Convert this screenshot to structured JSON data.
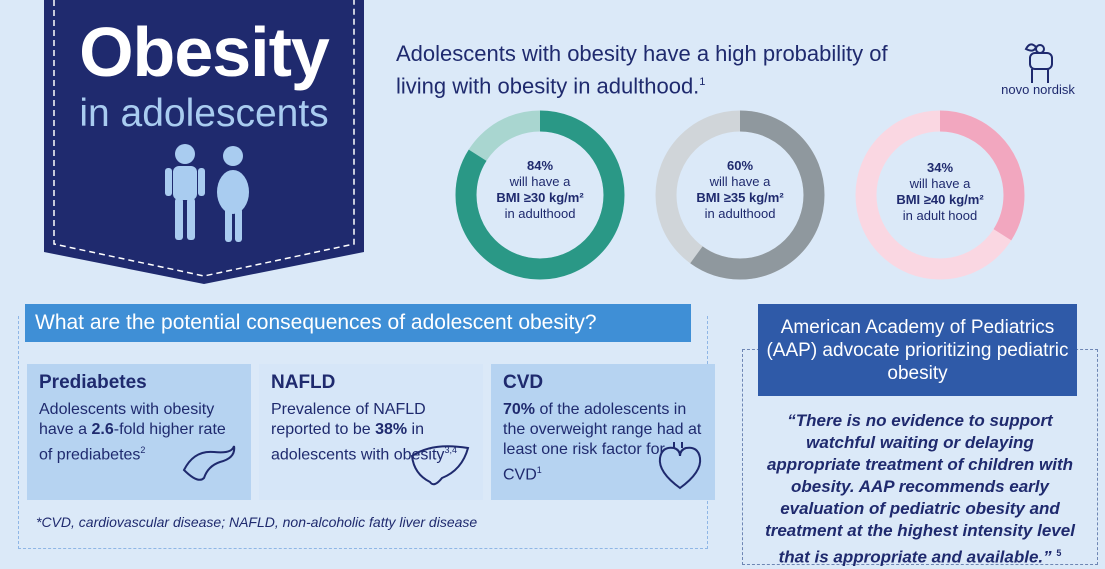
{
  "banner": {
    "title": "Obesity",
    "subtitle": "in adolescents"
  },
  "intro": {
    "text": "Adolescents with obesity have a high probability of living with obesity in adulthood.",
    "ref": "1"
  },
  "logo": {
    "text": "novo nordisk"
  },
  "donuts": [
    {
      "percent": "84%",
      "line1": "will have a",
      "line2": "BMI ≥30 kg/m²",
      "line3": "in adulthood",
      "value": 0.84,
      "color": "#2a9886",
      "track": "#a9d6d0"
    },
    {
      "percent": "60%",
      "line1": "will have a",
      "line2": "BMI ≥35 kg/m²",
      "line3": "in adulthood",
      "value": 0.6,
      "color": "#8f989e",
      "track": "#d0d5d9"
    },
    {
      "percent": "34%",
      "line1": "will have a",
      "line2": "BMI ≥40 kg/m²",
      "line3": "in adult hood",
      "value": 0.34,
      "color": "#f2a7bf",
      "track": "#fad7e2"
    }
  ],
  "consequences": {
    "heading": "What are the potential consequences of adolescent obesity?",
    "cards": [
      {
        "title": "Prediabetes",
        "pre": "Adolescents with obesity have a ",
        "bold": "2.6",
        "post": "-fold higher rate of prediabetes",
        "ref": "2"
      },
      {
        "title": "NAFLD",
        "pre": "Prevalence of NAFLD reported to be ",
        "bold": "38%",
        "post": " in adolescents with obesity",
        "ref": "3,4"
      },
      {
        "title": "CVD",
        "pre": "",
        "bold": "70%",
        "post": " of the adolescents in the overweight range had at least one risk factor for CVD",
        "ref": "1"
      }
    ],
    "footnote": "*CVD, cardiovascular disease; NAFLD, non-alcoholic fatty liver disease"
  },
  "aap": {
    "title": "American Academy of Pediatrics (AAP) advocate prioritizing pediatric obesity",
    "quote": "“There is no evidence to support watchful waiting or delaying appropriate treatment of children with obesity. AAP recommends early evaluation of pediatric obesity and treatment at the highest intensity level that is appropriate and available.”",
    "ref": "5"
  }
}
